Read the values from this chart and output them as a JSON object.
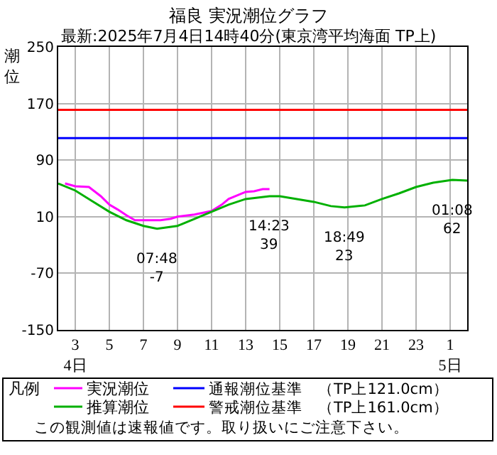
{
  "chart_data": {
    "type": "line",
    "title": "福良 実況潮位グラフ",
    "subtitle": "最新:2025年7月4日14時40分(東京湾平均海面 TP上)",
    "ylabel": "潮位",
    "legend_title": "凡例",
    "legend": "bottom",
    "grid": true,
    "marker": "none",
    "line_style": "solid",
    "xlim": [
      2,
      26
    ],
    "ylim": [
      -150,
      250
    ],
    "xticks": [
      {
        "value": 3,
        "label": "3\n4日"
      },
      5,
      7,
      9,
      11,
      13,
      15,
      17,
      19,
      21,
      23,
      {
        "value": 25,
        "label": "1\n5日"
      }
    ],
    "yticks": [
      -150,
      -70,
      10,
      90,
      170,
      250
    ],
    "series": [
      {
        "name": "実況潮位",
        "color": "#ff00ff",
        "x": [
          2.4,
          3,
          3.8,
          4.5,
          5,
          5.5,
          6,
          6.5,
          7,
          8,
          8.6,
          9,
          10,
          11,
          11.6,
          12,
          12.6,
          13,
          13.5,
          14,
          14.4
        ],
        "values": [
          57,
          53,
          52,
          39,
          27,
          20,
          12,
          5,
          5,
          5,
          7,
          10,
          13,
          18,
          27,
          35,
          41,
          45,
          46,
          49,
          49
        ]
      },
      {
        "name": "推算潮位",
        "color": "#00b000",
        "x": [
          2,
          3,
          4,
          5,
          6,
          7,
          7.8,
          9,
          10,
          11,
          12,
          13,
          14.4,
          15,
          16,
          17,
          18,
          18.8,
          20,
          21,
          22,
          23,
          24,
          25.13,
          26
        ],
        "values": [
          57,
          47,
          32,
          17,
          5,
          -3,
          -7,
          -3,
          7,
          17,
          27,
          35,
          39,
          39,
          35,
          31,
          25,
          23,
          26,
          35,
          43,
          52,
          58,
          62,
          61
        ]
      }
    ],
    "ref_lines": [
      {
        "axis": "y",
        "value": 121,
        "label": "通報潮位基準　（TP上121.0cm）",
        "color": "#0000ff"
      },
      {
        "axis": "y",
        "value": 161,
        "label": "警戒潮位基準　（TP上161.0cm）",
        "color": "#ff0000"
      }
    ],
    "annotations": [
      {
        "text": "07:48\n-7",
        "x": 7.8,
        "y": -7
      },
      {
        "text": "14:23\n39",
        "x": 14.38,
        "y": 39
      },
      {
        "text": "18:49\n23",
        "x": 18.82,
        "y": 23
      },
      {
        "text": "01:08\n62",
        "x": 25.13,
        "y": 62
      },
      "この観測値は速報値です。取り扱いにご注意下さい。"
    ]
  }
}
